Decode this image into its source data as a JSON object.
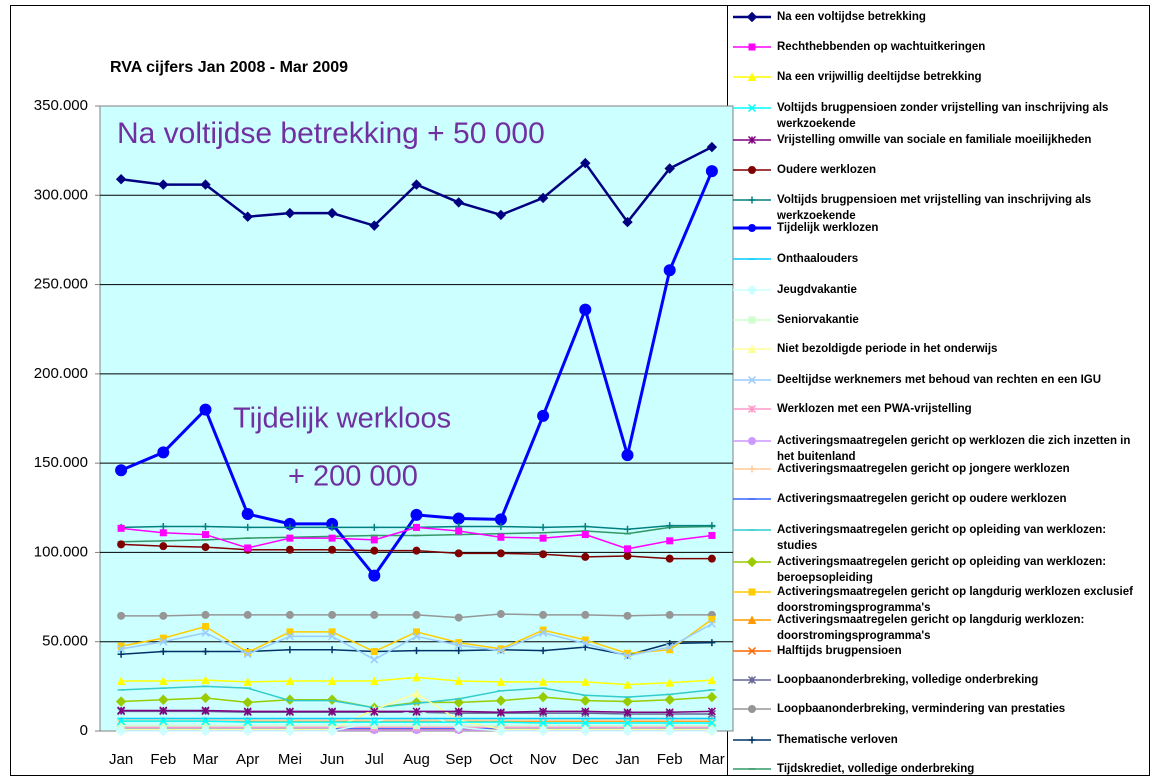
{
  "chart_data": {
    "type": "line",
    "title": "RVA cijfers Jan 2008 - Mar 2009",
    "annotations": [
      "Na voltijdse betrekking + 50 000",
      "Tijdelijk werkloos",
      "+ 200 000"
    ],
    "annotation_color": "#7030a0",
    "plot_background": "#ccffff",
    "grid": true,
    "legend": "right",
    "categories": [
      "Jan",
      "Feb",
      "Mar",
      "Apr",
      "Mei",
      "Jun",
      "Jul",
      "Aug",
      "Sep",
      "Oct",
      "Nov",
      "Dec",
      "Jan",
      "Feb",
      "Mar"
    ],
    "ylim": [
      0,
      350000
    ],
    "yticks": [
      0,
      {
        "value": 50000,
        "label": "50.000"
      },
      {
        "value": 100000,
        "label": "100.000"
      },
      {
        "value": 150000,
        "label": "150.000"
      },
      {
        "value": 200000,
        "label": "200.000"
      },
      {
        "value": 250000,
        "label": "250.000"
      },
      {
        "value": 300000,
        "label": "300.000"
      },
      {
        "value": 350000,
        "label": "350.000"
      }
    ],
    "series": [
      {
        "name": "Na een voltijdse betrekking",
        "color": "#000080",
        "marker": "diamond",
        "line_width": 2.5,
        "values": [
          309000,
          306000,
          306000,
          288000,
          290000,
          290000,
          283000,
          306000,
          296000,
          289000,
          298500,
          318000,
          285000,
          315000,
          327000
        ]
      },
      {
        "name": "Rechthebbenden op wachtuitkeringen",
        "color": "#ff00ff",
        "marker": "square",
        "values": [
          113500,
          111000,
          110000,
          102500,
          108000,
          108000,
          107000,
          114000,
          112000,
          108500,
          108000,
          110000,
          102000,
          106500,
          109500
        ]
      },
      {
        "name": "Na een vrijwillig deeltijdse betrekking",
        "color": "#ffff00",
        "marker": "triangle",
        "values": [
          28000,
          28000,
          28500,
          27500,
          28000,
          28000,
          28000,
          30000,
          28000,
          27500,
          27500,
          27500,
          26000,
          27000,
          28500
        ]
      },
      {
        "name": "Voltijds brugpensioen zonder vrijstelling van inschrijving als werkzoekende",
        "color": "#00ffff",
        "marker": "x",
        "values": [
          5500,
          5500,
          5500,
          5000,
          5000,
          5000,
          5000,
          5000,
          5000,
          5000,
          4500,
          4500,
          4500,
          4500,
          4500
        ]
      },
      {
        "name": "Vrijstelling omwille van sociale en familiale moeilijkheden",
        "color": "#800080",
        "marker": "star",
        "values": [
          11500,
          11500,
          11500,
          11000,
          11000,
          11000,
          11000,
          11000,
          11000,
          10500,
          11000,
          11000,
          10500,
          10500,
          11000
        ]
      },
      {
        "name": "Oudere werklozen",
        "color": "#800000",
        "marker": "circle",
        "values": [
          104500,
          103500,
          103000,
          101500,
          101500,
          101500,
          101000,
          101000,
          99500,
          99500,
          99000,
          97500,
          98000,
          96500,
          96500
        ]
      },
      {
        "name": "Voltijds brugpensioen met vrijstelling van inschrijving als werkzoekende",
        "color": "#008080",
        "marker": "plus",
        "values": [
          114000,
          114500,
          114500,
          114000,
          114000,
          114000,
          114000,
          114000,
          114500,
          114500,
          114000,
          114500,
          113000,
          115000,
          115000
        ]
      },
      {
        "name": "Tijdelijk werklozen",
        "color": "#0000ff",
        "marker": "circle",
        "line_width": 3,
        "marker_size": 5.5,
        "values": [
          146000,
          156000,
          180000,
          121500,
          116000,
          116000,
          87000,
          121000,
          119000,
          118500,
          176500,
          236000,
          154500,
          258000,
          313500
        ]
      },
      {
        "name": "Onthaalouders",
        "color": "#00ccff",
        "marker": "dash",
        "values": [
          7000,
          7000,
          7000,
          7000,
          7000,
          7000,
          7000,
          7000,
          7000,
          7000,
          7000,
          7000,
          7000,
          7000,
          7000
        ]
      },
      {
        "name": "Jeugdvakantie",
        "color": "#ccffff",
        "marker": "diamond",
        "values": [
          0,
          0,
          0,
          0,
          0,
          0,
          5000,
          12000,
          2000,
          0,
          0,
          0,
          0,
          0,
          0
        ]
      },
      {
        "name": "Seniorvakantie",
        "color": "#ccffcc",
        "marker": "square",
        "values": [
          3000,
          3000,
          3000,
          3000,
          3000,
          3000,
          3000,
          3000,
          3000,
          3000,
          3000,
          3000,
          3000,
          3000,
          3000
        ]
      },
      {
        "name": "Niet bezoldigde periode in het onderwijs",
        "color": "#ffff99",
        "marker": "triangle",
        "values": [
          1000,
          1000,
          1000,
          1000,
          1000,
          1000,
          12000,
          21000,
          6000,
          1000,
          1000,
          1000,
          1000,
          1000,
          1000
        ]
      },
      {
        "name": "Deeltijdse werknemers met behoud van rechten en een IGU",
        "color": "#99ccff",
        "marker": "x",
        "values": [
          46000,
          50000,
          55000,
          43000,
          53000,
          53000,
          40000,
          53000,
          48000,
          45000,
          55000,
          49000,
          42000,
          47000,
          60000
        ]
      },
      {
        "name": "Werklozen met een PWA-vrijstelling",
        "color": "#ff99cc",
        "marker": "star",
        "values": [
          2000,
          2000,
          2000,
          2000,
          2000,
          2000,
          2000,
          2000,
          2000,
          2000,
          2000,
          2000,
          2000,
          2000,
          2000
        ]
      },
      {
        "name": "Activeringsmaatregelen gericht op werklozen die zich inzetten in het buitenland",
        "color": "#cc99ff",
        "marker": "circle",
        "values": [
          500,
          500,
          500,
          500,
          500,
          500,
          500,
          500,
          500,
          500,
          500,
          500,
          500,
          500,
          500
        ]
      },
      {
        "name": "Activeringsmaatregelen gericht op jongere werklozen",
        "color": "#ffcc99",
        "marker": "plus",
        "values": [
          6000,
          6000,
          6000,
          6000,
          6000,
          6000,
          6000,
          6000,
          6000,
          6000,
          6000,
          6000,
          6000,
          6000,
          6000
        ]
      },
      {
        "name": "Activeringsmaatregelen gericht op oudere werklozen",
        "color": "#3366ff",
        "marker": "dash",
        "values": [
          1500,
          1500,
          1500,
          1500,
          1500,
          1500,
          1500,
          1500,
          1500,
          1500,
          1500,
          1500,
          1500,
          1500,
          1500
        ]
      },
      {
        "name": "Activeringsmaatregelen gericht op opleiding van werklozen: studies",
        "color": "#33cccc",
        "marker": "dash",
        "values": [
          23000,
          24000,
          25000,
          24000,
          17000,
          17000,
          13000,
          15500,
          18000,
          22500,
          24000,
          20000,
          19000,
          20500,
          23000
        ]
      },
      {
        "name": "Activeringsmaatregelen gericht op opleiding van werklozen: beroepsopleiding",
        "color": "#99cc00",
        "marker": "diamond",
        "values": [
          16500,
          17500,
          18500,
          16000,
          17500,
          17500,
          13000,
          16000,
          16000,
          17000,
          19000,
          17000,
          16500,
          17500,
          19000
        ]
      },
      {
        "name": "Activeringsmaatregelen gericht op langdurig werklozen exclusief doorstromingsprogramma's",
        "color": "#ffcc00",
        "marker": "square",
        "values": [
          47500,
          52000,
          58500,
          44000,
          55500,
          55500,
          44500,
          55500,
          49500,
          46000,
          56500,
          51000,
          43500,
          45500,
          62500
        ]
      },
      {
        "name": "Activeringsmaatregelen gericht op langdurig werklozen: doorstromingsprogramma's",
        "color": "#ff9900",
        "marker": "triangle",
        "values": [
          5500,
          5500,
          5500,
          5500,
          5500,
          5500,
          5500,
          5500,
          5500,
          5500,
          5500,
          5500,
          5500,
          5500,
          5500
        ]
      },
      {
        "name": "Halftijds brugpensioen",
        "color": "#ff6600",
        "marker": "x",
        "values": [
          1000,
          1000,
          1000,
          1000,
          1000,
          1000,
          1000,
          1000,
          1000,
          1000,
          1000,
          1000,
          1000,
          1000,
          1000
        ]
      },
      {
        "name": "Loopbaanonderbreking, volledige onderbreking",
        "color": "#666699",
        "marker": "star",
        "values": [
          11000,
          11000,
          11000,
          10500,
          10500,
          10500,
          10500,
          10500,
          10000,
          10000,
          10000,
          10000,
          9500,
          9500,
          9500
        ]
      },
      {
        "name": "Loopbaanonderbreking, vermindering van prestaties",
        "color": "#969696",
        "marker": "circle",
        "values": [
          64500,
          64500,
          65000,
          65000,
          65000,
          65000,
          65000,
          65000,
          63500,
          65500,
          65000,
          65000,
          64500,
          65000,
          65000
        ]
      },
      {
        "name": "Thematische verloven",
        "color": "#003366",
        "marker": "plus",
        "values": [
          43000,
          44500,
          44500,
          44500,
          45500,
          45500,
          44500,
          45000,
          45000,
          45500,
          45000,
          47000,
          42500,
          49000,
          49500
        ]
      },
      {
        "name": "Tijdskrediet, volledige onderbreking",
        "color": "#339966",
        "marker": "dash",
        "values": [
          106000,
          106500,
          107000,
          108000,
          108500,
          109000,
          109500,
          109500,
          110000,
          110500,
          111000,
          112000,
          110500,
          114000,
          114500
        ]
      }
    ]
  }
}
